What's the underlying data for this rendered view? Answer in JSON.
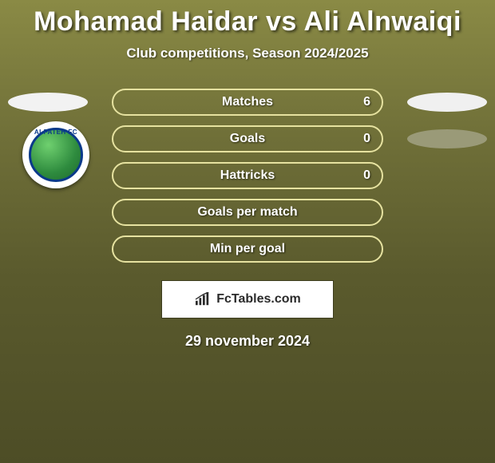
{
  "title": "Mohamad Haidar vs Ali Alnwaiqi",
  "subtitle": "Club competitions, Season 2024/2025",
  "date": "29 november 2024",
  "colors": {
    "pill_border": "#e6e2a0",
    "pill_border_alt": "#d9d58f",
    "ellipse_left": "#f2f2f2",
    "ellipse_right_light": "#f0f0f0",
    "ellipse_right_grey": "#9a9a78",
    "badge_ring": "#0a3a8a",
    "badge_bg": "#ffffff"
  },
  "club_badge": {
    "name": "ALFATEH FC",
    "year": "1958"
  },
  "rows": [
    {
      "label": "Matches",
      "value_right": "6",
      "left_ellipse": true,
      "right_ellipse": true,
      "right_ellipse_light": true
    },
    {
      "label": "Goals",
      "value_right": "0",
      "left_ellipse": false,
      "right_ellipse": true,
      "right_ellipse_light": false
    },
    {
      "label": "Hattricks",
      "value_right": "0",
      "left_ellipse": false,
      "right_ellipse": false,
      "right_ellipse_light": false
    },
    {
      "label": "Goals per match",
      "value_right": "",
      "left_ellipse": false,
      "right_ellipse": false,
      "right_ellipse_light": false
    },
    {
      "label": "Min per goal",
      "value_right": "",
      "left_ellipse": false,
      "right_ellipse": false,
      "right_ellipse_light": false
    }
  ],
  "brand": {
    "text": "FcTables.com"
  }
}
